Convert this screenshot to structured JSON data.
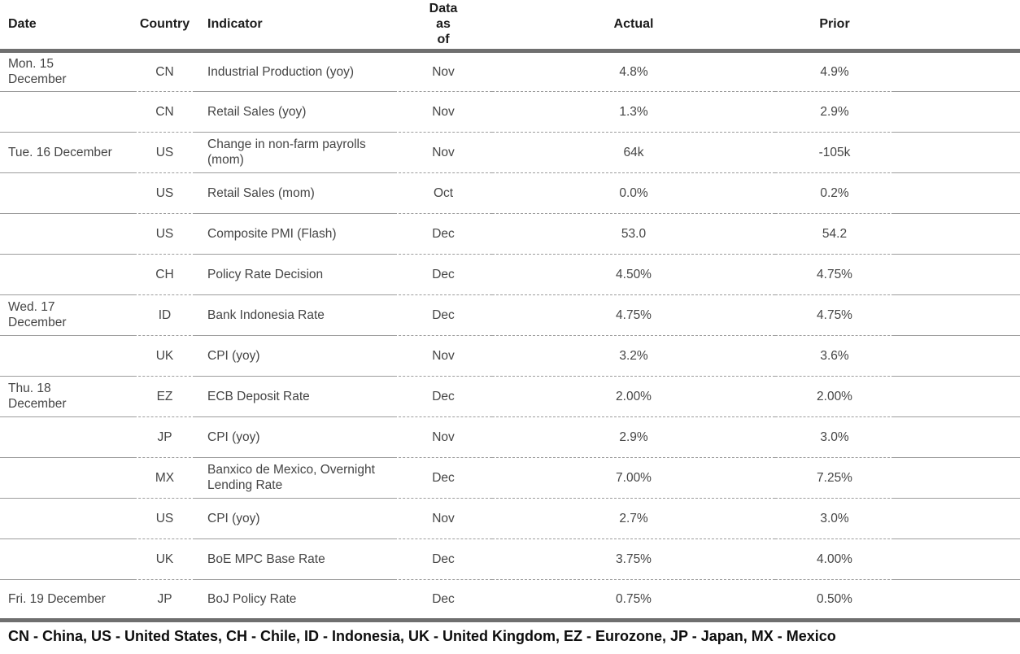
{
  "table": {
    "columns": [
      {
        "key": "date",
        "label": "Date"
      },
      {
        "key": "country",
        "label": "Country"
      },
      {
        "key": "indicator",
        "label": "Indicator"
      },
      {
        "key": "data_as_of",
        "label": "Data\nas\nof"
      },
      {
        "key": "actual",
        "label": "Actual"
      },
      {
        "key": "prior",
        "label": "Prior"
      }
    ],
    "rows": [
      {
        "date": "Mon. 15\nDecember",
        "country": "CN",
        "indicator": "Industrial Production (yoy)",
        "data_as_of": "Nov",
        "actual": "4.8%",
        "prior": "4.9%"
      },
      {
        "date": "",
        "country": "CN",
        "indicator": "Retail Sales (yoy)",
        "data_as_of": "Nov",
        "actual": "1.3%",
        "prior": "2.9%"
      },
      {
        "date": "Tue. 16 December",
        "country": "US",
        "indicator": "Change in non-farm payrolls (mom)",
        "data_as_of": "Nov",
        "actual": "64k",
        "prior": "-105k"
      },
      {
        "date": "",
        "country": "US",
        "indicator": "Retail Sales (mom)",
        "data_as_of": "Oct",
        "actual": "0.0%",
        "prior": "0.2%"
      },
      {
        "date": "",
        "country": "US",
        "indicator": "Composite PMI (Flash)",
        "data_as_of": "Dec",
        "actual": "53.0",
        "prior": "54.2"
      },
      {
        "date": "",
        "country": "CH",
        "indicator": "Policy Rate Decision",
        "data_as_of": "Dec",
        "actual": "4.50%",
        "prior": "4.75%"
      },
      {
        "date": "Wed. 17\nDecember",
        "country": "ID",
        "indicator": "Bank Indonesia Rate",
        "data_as_of": "Dec",
        "actual": "4.75%",
        "prior": "4.75%"
      },
      {
        "date": "",
        "country": "UK",
        "indicator": "CPI (yoy)",
        "data_as_of": "Nov",
        "actual": "3.2%",
        "prior": "3.6%"
      },
      {
        "date": "Thu. 18\nDecember",
        "country": "EZ",
        "indicator": "ECB Deposit Rate",
        "data_as_of": "Dec",
        "actual": "2.00%",
        "prior": "2.00%"
      },
      {
        "date": "",
        "country": "JP",
        "indicator": "CPI (yoy)",
        "data_as_of": "Nov",
        "actual": "2.9%",
        "prior": "3.0%"
      },
      {
        "date": "",
        "country": "MX",
        "indicator": "Banxico de Mexico, Overnight Lending Rate",
        "data_as_of": "Dec",
        "actual": "7.00%",
        "prior": "7.25%"
      },
      {
        "date": "",
        "country": "US",
        "indicator": "CPI (yoy)",
        "data_as_of": "Nov",
        "actual": "2.7%",
        "prior": "3.0%"
      },
      {
        "date": "",
        "country": "UK",
        "indicator": "BoE MPC Base Rate",
        "data_as_of": "Dec",
        "actual": "3.75%",
        "prior": "4.00%"
      },
      {
        "date": "Fri. 19 December",
        "country": "JP",
        "indicator": "BoJ Policy Rate",
        "data_as_of": "Dec",
        "actual": "0.75%",
        "prior": "0.50%"
      }
    ]
  },
  "legend": "CN - China, US - United States, CH - Chile, ID - Indonesia, UK - United Kingdom, EZ - Eurozone, JP - Japan, MX - Mexico",
  "colors": {
    "rule_heavy": "#6f6f6f",
    "rule_light": "#9c9c9c",
    "header_text": "#1c1c1c",
    "body_text": "#454545",
    "footer_text": "#0d0d0d",
    "background": "#ffffff"
  }
}
